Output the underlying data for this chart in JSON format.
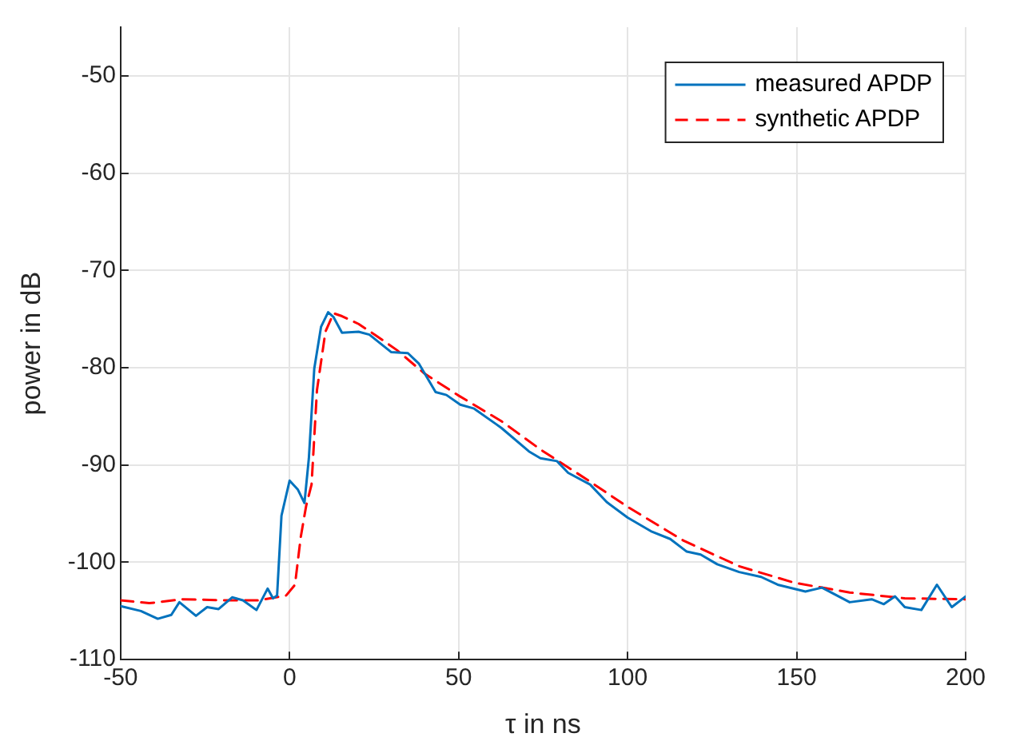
{
  "chart_data": {
    "type": "line",
    "xlabel": "τ in ns",
    "ylabel": "power in dB",
    "xlim": [
      -50,
      200
    ],
    "ylim": [
      -110,
      -45
    ],
    "xticks": [
      -50,
      0,
      50,
      100,
      150,
      200
    ],
    "yticks": [
      -110,
      -100,
      -90,
      -80,
      -70,
      -60,
      -50
    ],
    "grid": true,
    "legend": "top right",
    "series": [
      {
        "name": "measured APDP",
        "color": "#0072bd",
        "line_style": "solid",
        "x": [
          -50,
          -44,
          -39,
          -35,
          -32.6,
          -27.7,
          -24.4,
          -21,
          -17,
          -13.8,
          -9.8,
          -6.5,
          -4.9,
          -3.7,
          -2.4,
          0,
          2.4,
          4.4,
          5.7,
          7.3,
          9.3,
          11.4,
          13,
          15.5,
          20.4,
          23.6,
          30.1,
          35,
          38.3,
          43.2,
          46.4,
          50.5,
          54.6,
          61.1,
          62.7,
          70.8,
          74.2,
          79.1,
          82.4,
          88.9,
          93.8,
          100,
          106.9,
          112.6,
          117.5,
          121.6,
          126.5,
          133,
          139.5,
          144.4,
          152.6,
          157.5,
          165.7,
          172.2,
          175.8,
          179.1,
          182,
          186.9,
          191.5,
          195.9,
          200
        ],
        "values": [
          -104.5,
          -105,
          -105.8,
          -105.4,
          -104.1,
          -105.5,
          -104.6,
          -104.8,
          -103.6,
          -103.9,
          -104.9,
          -102.7,
          -103.7,
          -103.4,
          -95.2,
          -91.6,
          -92.5,
          -93.9,
          -89.3,
          -80.1,
          -75.8,
          -74.3,
          -74.8,
          -76.4,
          -76.3,
          -76.6,
          -78.4,
          -78.5,
          -79.6,
          -82.5,
          -82.8,
          -83.8,
          -84.2,
          -85.8,
          -86.2,
          -88.6,
          -89.3,
          -89.6,
          -90.8,
          -92,
          -93.8,
          -95.4,
          -96.8,
          -97.6,
          -98.9,
          -99.2,
          -100.2,
          -101,
          -101.5,
          -102.3,
          -103,
          -102.6,
          -104.1,
          -103.8,
          -104.3,
          -103.5,
          -104.6,
          -104.9,
          -102.3,
          -104.6,
          -103.5
        ]
      },
      {
        "name": "synthetic APDP",
        "color": "#ff0000",
        "line_style": "dashed",
        "x": [
          -50,
          -41.5,
          -32,
          -19,
          -9,
          -1,
          1.6,
          3.3,
          4.9,
          6.5,
          8.1,
          10.6,
          13,
          15.5,
          20.4,
          25.2,
          31.8,
          39.9,
          49.7,
          62.7,
          74.2,
          88,
          100,
          116.7,
          133,
          149.3,
          165.7,
          182,
          200
        ],
        "values": [
          -103.9,
          -104.2,
          -103.8,
          -103.9,
          -103.9,
          -103.4,
          -102.3,
          -97.4,
          -94.2,
          -92,
          -82.3,
          -76.3,
          -74.4,
          -74.7,
          -75.5,
          -76.6,
          -78.2,
          -80.6,
          -82.8,
          -85.5,
          -88.4,
          -91.5,
          -94.3,
          -97.8,
          -100.4,
          -102.1,
          -103.1,
          -103.7,
          -103.8
        ]
      }
    ]
  }
}
